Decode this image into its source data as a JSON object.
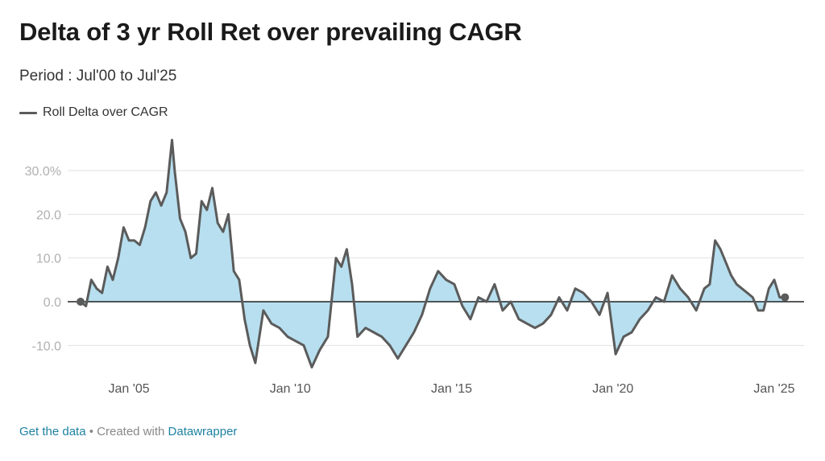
{
  "title": "Delta of 3 yr Roll Ret over prevailing CAGR",
  "subtitle": "Period : Jul'00 to Jul'25",
  "footer": {
    "get_data": "Get the data",
    "separator": " • Created with ",
    "tool": "Datawrapper"
  },
  "chart_data": {
    "type": "area",
    "title": "Delta of 3 yr Roll Ret over prevailing CAGR",
    "subtitle": "Period : Jul'00 to Jul'25",
    "xlabel": "",
    "ylabel": "",
    "legend": {
      "position": "top-left",
      "entries": [
        "Roll Delta over CAGR"
      ]
    },
    "grid": true,
    "colors": {
      "line": "#5b5b5b",
      "fill": "#b7dfef",
      "zero_line": "#222222",
      "grid": "#e2e2e2",
      "tick_text": "#b0b0b0",
      "x_tick_text": "#555555"
    },
    "xlim": [
      "2003-07",
      "2025-07"
    ],
    "ylim": [
      -15,
      35
    ],
    "y_ticks": [
      {
        "value": 30,
        "label": "30.0%"
      },
      {
        "value": 20,
        "label": "20.0"
      },
      {
        "value": 10,
        "label": "10.0"
      },
      {
        "value": 0,
        "label": "0.0"
      },
      {
        "value": -10,
        "label": "-10.0"
      }
    ],
    "x_ticks": [
      {
        "value": "2005-01",
        "label": "Jan '05"
      },
      {
        "value": "2010-01",
        "label": "Jan '10"
      },
      {
        "value": "2015-01",
        "label": "Jan '15"
      },
      {
        "value": "2020-01",
        "label": "Jan '20"
      },
      {
        "value": "2025-01",
        "label": "Jan '25"
      }
    ],
    "series": [
      {
        "name": "Roll Delta over CAGR",
        "points": [
          [
            "2003-07",
            0
          ],
          [
            "2003-09",
            -1
          ],
          [
            "2003-11",
            5
          ],
          [
            "2004-01",
            3
          ],
          [
            "2004-03",
            2
          ],
          [
            "2004-05",
            8
          ],
          [
            "2004-07",
            5
          ],
          [
            "2004-09",
            10
          ],
          [
            "2004-11",
            17
          ],
          [
            "2005-01",
            14
          ],
          [
            "2005-03",
            14
          ],
          [
            "2005-05",
            13
          ],
          [
            "2005-07",
            17
          ],
          [
            "2005-09",
            23
          ],
          [
            "2005-11",
            25
          ],
          [
            "2006-01",
            22
          ],
          [
            "2006-03",
            25
          ],
          [
            "2006-05",
            37
          ],
          [
            "2006-06",
            30
          ],
          [
            "2006-08",
            19
          ],
          [
            "2006-10",
            16
          ],
          [
            "2006-12",
            10
          ],
          [
            "2007-02",
            11
          ],
          [
            "2007-04",
            23
          ],
          [
            "2007-06",
            21
          ],
          [
            "2007-08",
            26
          ],
          [
            "2007-10",
            18
          ],
          [
            "2007-12",
            16
          ],
          [
            "2008-02",
            20
          ],
          [
            "2008-04",
            7
          ],
          [
            "2008-06",
            5
          ],
          [
            "2008-08",
            -4
          ],
          [
            "2008-10",
            -10
          ],
          [
            "2008-12",
            -14
          ],
          [
            "2009-03",
            -2
          ],
          [
            "2009-06",
            -5
          ],
          [
            "2009-09",
            -6
          ],
          [
            "2009-12",
            -8
          ],
          [
            "2010-03",
            -9
          ],
          [
            "2010-06",
            -10
          ],
          [
            "2010-09",
            -15
          ],
          [
            "2010-12",
            -11
          ],
          [
            "2011-03",
            -8
          ],
          [
            "2011-06",
            10
          ],
          [
            "2011-08",
            8
          ],
          [
            "2011-10",
            12
          ],
          [
            "2011-12",
            4
          ],
          [
            "2012-02",
            -8
          ],
          [
            "2012-05",
            -6
          ],
          [
            "2012-08",
            -7
          ],
          [
            "2012-11",
            -8
          ],
          [
            "2013-02",
            -10
          ],
          [
            "2013-05",
            -13
          ],
          [
            "2013-08",
            -10
          ],
          [
            "2013-11",
            -7
          ],
          [
            "2014-02",
            -3
          ],
          [
            "2014-05",
            3
          ],
          [
            "2014-08",
            7
          ],
          [
            "2014-11",
            5
          ],
          [
            "2015-02",
            4
          ],
          [
            "2015-05",
            -1
          ],
          [
            "2015-08",
            -4
          ],
          [
            "2015-11",
            1
          ],
          [
            "2016-02",
            0
          ],
          [
            "2016-05",
            4
          ],
          [
            "2016-08",
            -2
          ],
          [
            "2016-11",
            0
          ],
          [
            "2017-02",
            -4
          ],
          [
            "2017-05",
            -5
          ],
          [
            "2017-08",
            -6
          ],
          [
            "2017-11",
            -5
          ],
          [
            "2018-02",
            -3
          ],
          [
            "2018-05",
            1
          ],
          [
            "2018-08",
            -2
          ],
          [
            "2018-11",
            3
          ],
          [
            "2019-02",
            2
          ],
          [
            "2019-05",
            0
          ],
          [
            "2019-08",
            -3
          ],
          [
            "2019-11",
            2
          ],
          [
            "2020-02",
            -12
          ],
          [
            "2020-05",
            -8
          ],
          [
            "2020-08",
            -7
          ],
          [
            "2020-11",
            -4
          ],
          [
            "2021-02",
            -2
          ],
          [
            "2021-05",
            1
          ],
          [
            "2021-08",
            0
          ],
          [
            "2021-11",
            6
          ],
          [
            "2022-02",
            3
          ],
          [
            "2022-05",
            1
          ],
          [
            "2022-08",
            -2
          ],
          [
            "2022-11",
            3
          ],
          [
            "2023-01",
            4
          ],
          [
            "2023-03",
            14
          ],
          [
            "2023-05",
            12
          ],
          [
            "2023-07",
            9
          ],
          [
            "2023-09",
            6
          ],
          [
            "2023-11",
            4
          ],
          [
            "2024-01",
            3
          ],
          [
            "2024-03",
            2
          ],
          [
            "2024-05",
            1
          ],
          [
            "2024-07",
            -2
          ],
          [
            "2024-09",
            -2
          ],
          [
            "2024-11",
            3
          ],
          [
            "2025-01",
            5
          ],
          [
            "2025-03",
            1
          ],
          [
            "2025-05",
            1
          ]
        ]
      }
    ]
  }
}
